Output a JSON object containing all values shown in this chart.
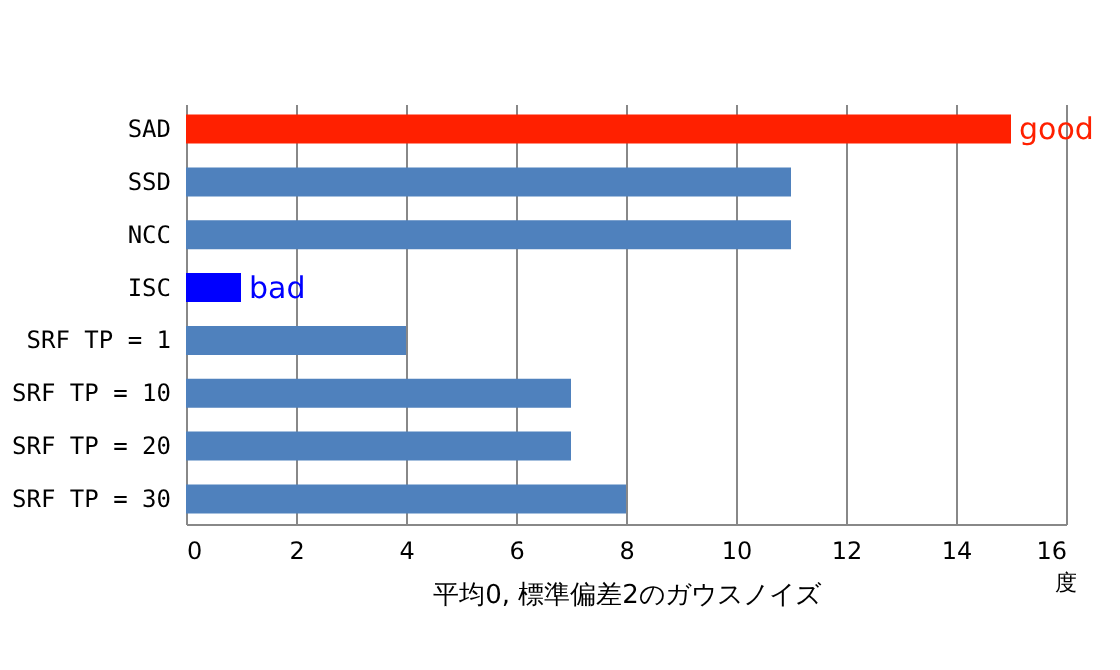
{
  "chart_data": {
    "type": "bar",
    "orientation": "horizontal",
    "categories": [
      "SAD",
      "SSD",
      "NCC",
      "ISC",
      "SRF TP = 1",
      "SRF TP = 10",
      "SRF TP = 20",
      "SRF TP = 30"
    ],
    "values": [
      15,
      11,
      11,
      1,
      4,
      7,
      7,
      8
    ],
    "colors": [
      "#ff2000",
      "#4f81bd",
      "#4f81bd",
      "#0000ff",
      "#4f81bd",
      "#4f81bd",
      "#4f81bd",
      "#4f81bd"
    ],
    "xlim": [
      0,
      16
    ],
    "xticks": [
      0,
      2,
      4,
      6,
      8,
      10,
      12,
      14,
      16
    ],
    "xlabel": "平均0, 標準偏差2のガウスノイズ",
    "annotations": [
      {
        "text": "good",
        "x": 15,
        "y": "SAD"
      },
      {
        "text": "bad",
        "x": 1,
        "y": "ISC"
      },
      "度"
    ],
    "grid": "x"
  }
}
